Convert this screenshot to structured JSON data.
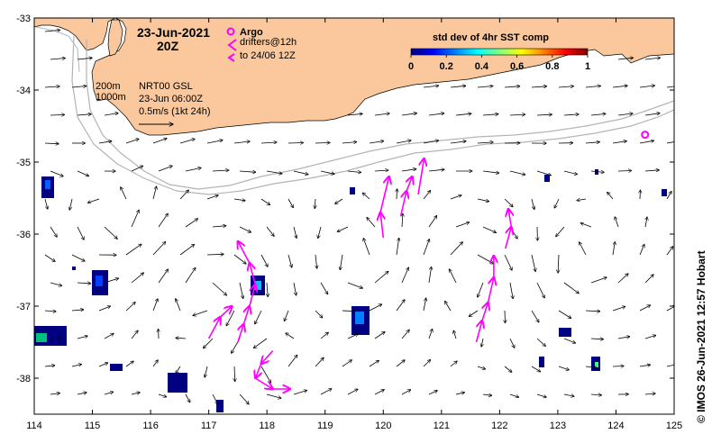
{
  "map": {
    "title_date": "23-Jun-2021",
    "title_hour": "20Z",
    "legend": {
      "argo_label": "Argo",
      "drifters_label": "drifters@12h",
      "drifters_sub": "to 24/06 12Z"
    },
    "info": {
      "contour_200": "200m",
      "contour_1000": "1000m",
      "product": "NRT00 GSL",
      "product_time": "23-Jun 06:00Z",
      "scale_label": "0.5m/s (1kt 24h)"
    },
    "colorbar": {
      "title": "std dev of 4hr SST comp",
      "ticks": [
        "0",
        "0.2",
        "0.4",
        "0.6",
        "0.8",
        "1"
      ],
      "colors": [
        "#000080",
        "#0000ff",
        "#0080ff",
        "#00ffff",
        "#80ff80",
        "#ffff00",
        "#ff8000",
        "#ff0000",
        "#800000"
      ]
    },
    "lon_ticks": [
      "114",
      "115",
      "116",
      "117",
      "118",
      "119",
      "120",
      "121",
      "122",
      "123",
      "124",
      "125"
    ],
    "lat_ticks": [
      "-33",
      "-34",
      "-35",
      "-36",
      "-37",
      "-38"
    ],
    "lon_range": [
      114,
      125
    ],
    "lat_range": [
      -38.5,
      -33
    ],
    "credit": "© IMOS 26-Jun-2021 12:57 Hobart",
    "colors": {
      "land": "#fac89c",
      "drifter": "#ff00ff",
      "argo": "#ff00ff",
      "contour": "#b4b4b4"
    },
    "argo_floats": [
      [
        124.5,
        -34.62
      ]
    ],
    "drifter_tracks": [
      [
        [
          117.5,
          -37.5
        ],
        [
          117.6,
          -37.25
        ],
        [
          117.7,
          -37.0
        ],
        [
          117.8,
          -36.7
        ],
        [
          117.7,
          -36.4
        ],
        [
          117.5,
          -36.1
        ]
      ],
      [
        [
          117.0,
          -37.45
        ],
        [
          117.2,
          -37.15
        ],
        [
          117.4,
          -37.0
        ]
      ],
      [
        [
          118.1,
          -37.62
        ],
        [
          117.9,
          -37.8
        ],
        [
          117.8,
          -38.0
        ],
        [
          118.1,
          -38.15
        ],
        [
          118.4,
          -38.15
        ]
      ],
      [
        [
          120.0,
          -36.05
        ],
        [
          119.95,
          -35.7
        ],
        [
          120.1,
          -35.2
        ]
      ],
      [
        [
          120.3,
          -35.75
        ],
        [
          120.4,
          -35.4
        ],
        [
          120.5,
          -35.2
        ]
      ],
      [
        [
          120.6,
          -35.45
        ],
        [
          120.7,
          -34.95
        ]
      ],
      [
        [
          121.6,
          -37.5
        ],
        [
          121.7,
          -37.2
        ],
        [
          121.8,
          -36.95
        ],
        [
          121.9,
          -36.6
        ],
        [
          121.9,
          -36.3
        ]
      ],
      [
        [
          122.1,
          -36.2
        ],
        [
          122.2,
          -35.9
        ],
        [
          122.15,
          -35.65
        ]
      ]
    ]
  }
}
